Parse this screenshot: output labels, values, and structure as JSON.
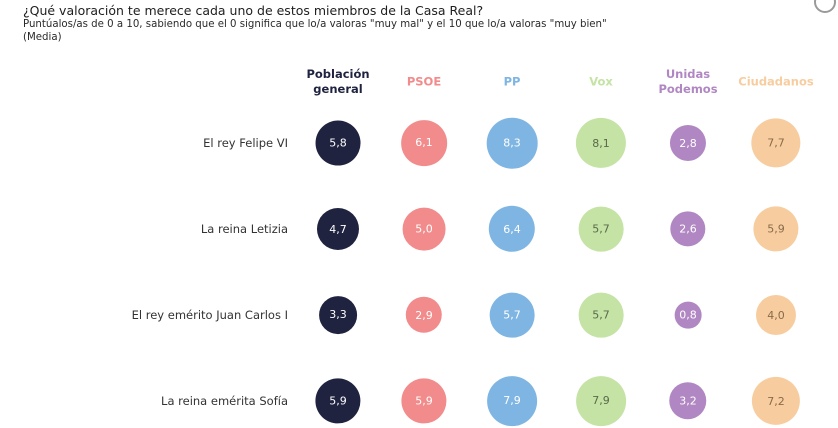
{
  "header": {
    "title": "¿Qué valoración te merece cada uno de estos miembros de la Casa Real?",
    "subtitle": "Puntúalos/as de 0 a 10, sabiendo que el 0 significa que lo/a valoras \"muy mal\" y el 10 que lo/a valoras \"muy bien\"",
    "note": "(Media)"
  },
  "chart_data": {
    "type": "bubble-matrix",
    "title": "¿Qué valoración te merece cada uno de estos miembros de la Casa Real?",
    "columns": [
      {
        "name": "Población\ngeneral",
        "color": "#1f2340",
        "text_color": "#ffffff"
      },
      {
        "name": "PSOE",
        "color": "#f28b8b",
        "text_color": "#ffffff"
      },
      {
        "name": "PP",
        "color": "#7fb5e2",
        "text_color": "#ffffff"
      },
      {
        "name": "Vox",
        "color": "#c4e3a4",
        "text_color": "#5a6a4a"
      },
      {
        "name": "Unidas\nPodemos",
        "color": "#b087c2",
        "text_color": "#ffffff"
      },
      {
        "name": "Ciudadanos",
        "color": "#f7cda0",
        "text_color": "#8a6a4a"
      }
    ],
    "rows": [
      "El rey Felipe VI",
      "La reina Letizia",
      "El rey emérito Juan Carlos I",
      "La reina emérita Sofía"
    ],
    "values": [
      [
        5.8,
        6.1,
        8.3,
        8.1,
        2.8,
        7.7
      ],
      [
        4.7,
        5.0,
        6.4,
        5.7,
        2.6,
        5.9
      ],
      [
        3.3,
        2.9,
        5.7,
        5.7,
        0.8,
        4.0
      ],
      [
        5.9,
        5.9,
        7.9,
        7.9,
        3.2,
        7.2
      ]
    ],
    "labels": [
      [
        "5,8",
        "6,1",
        "8,3",
        "8,1",
        "2,8",
        "7,7"
      ],
      [
        "4,7",
        "5,0",
        "6,4",
        "5,7",
        "2,6",
        "5,9"
      ],
      [
        "3,3",
        "2,9",
        "5,7",
        "5,7",
        "0,8",
        "4,0"
      ],
      [
        "5,9",
        "5,9",
        "7,9",
        "7,9",
        "3,2",
        "7,2"
      ]
    ],
    "scale": [
      0,
      10
    ]
  }
}
